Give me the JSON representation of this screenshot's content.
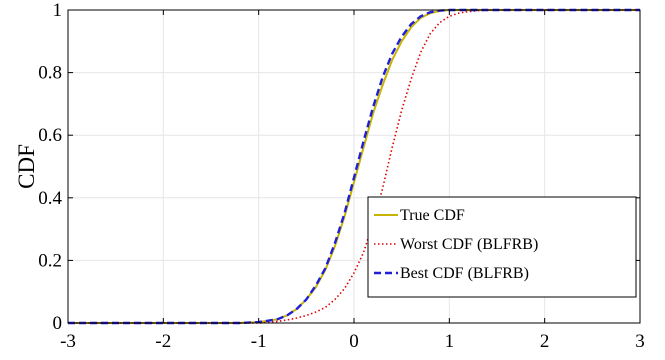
{
  "chart_data": {
    "type": "line",
    "title": "",
    "xlabel": "",
    "ylabel": "CDF",
    "xlim": [
      -3,
      3
    ],
    "ylim": [
      0,
      1
    ],
    "xticks": [
      "-3",
      "-2",
      "-1",
      "0",
      "1",
      "2",
      "3"
    ],
    "yticks": [
      "0",
      "0.2",
      "0.4",
      "0.6",
      "0.8",
      "1"
    ],
    "grid": true,
    "legend_position": "lower-right",
    "series": [
      {
        "name": "True CDF",
        "color": "#c8b400",
        "style": "solid",
        "x": [
          -3,
          -1.2,
          -1.0,
          -0.8,
          -0.7,
          -0.6,
          -0.5,
          -0.4,
          -0.3,
          -0.2,
          -0.1,
          0.0,
          0.1,
          0.2,
          0.3,
          0.4,
          0.5,
          0.6,
          0.7,
          0.8,
          0.9,
          1.0,
          1.2,
          3
        ],
        "y": [
          0,
          0,
          0.003,
          0.012,
          0.025,
          0.045,
          0.075,
          0.115,
          0.17,
          0.245,
          0.34,
          0.45,
          0.56,
          0.67,
          0.76,
          0.84,
          0.9,
          0.945,
          0.975,
          0.99,
          0.997,
          1.0,
          1.0,
          1.0
        ]
      },
      {
        "name": "Worst CDF (BLFRB)",
        "color": "#e00000",
        "style": "dotted",
        "x": [
          -3,
          -1.0,
          -0.9,
          -0.8,
          -0.7,
          -0.6,
          -0.5,
          -0.4,
          -0.3,
          -0.2,
          -0.1,
          0.0,
          0.1,
          0.2,
          0.3,
          0.4,
          0.5,
          0.6,
          0.7,
          0.8,
          0.9,
          1.0,
          1.1,
          1.2,
          1.3,
          1.5,
          3
        ],
        "y": [
          0,
          0,
          0.002,
          0.005,
          0.01,
          0.016,
          0.024,
          0.035,
          0.05,
          0.075,
          0.11,
          0.16,
          0.225,
          0.32,
          0.43,
          0.56,
          0.68,
          0.78,
          0.865,
          0.925,
          0.96,
          0.98,
          0.99,
          0.995,
          0.998,
          1.0,
          1.0
        ]
      },
      {
        "name": "Best CDF (BLFRB)",
        "color": "#1f1fd8",
        "style": "dashed",
        "x": [
          -3,
          -1.2,
          -1.0,
          -0.8,
          -0.7,
          -0.6,
          -0.5,
          -0.4,
          -0.3,
          -0.2,
          -0.1,
          0.0,
          0.1,
          0.2,
          0.3,
          0.4,
          0.5,
          0.6,
          0.7,
          0.8,
          0.9,
          1.0,
          1.2,
          3
        ],
        "y": [
          0,
          0,
          0.003,
          0.012,
          0.025,
          0.045,
          0.075,
          0.12,
          0.175,
          0.255,
          0.35,
          0.465,
          0.58,
          0.69,
          0.785,
          0.86,
          0.915,
          0.955,
          0.98,
          0.993,
          0.998,
          1.0,
          1.0,
          1.0
        ]
      }
    ]
  }
}
